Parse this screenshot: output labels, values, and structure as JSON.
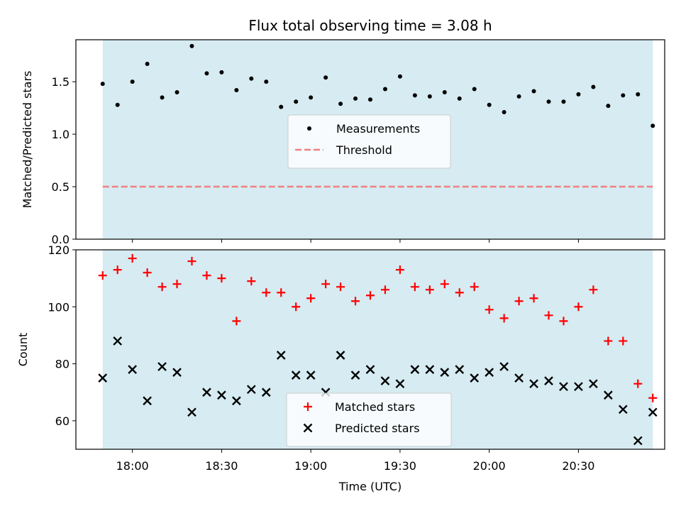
{
  "title": "Flux total observing time = 3.08 h",
  "colors": {
    "background": "#ffffff",
    "span_fill": "#add8e6",
    "measurements": "#000000",
    "threshold": "#f08080",
    "matched": "#ff0000",
    "predicted": "#000000",
    "legend_bg": "#ffffff",
    "legend_border": "#cccccc"
  },
  "chart_data": [
    {
      "type": "scatter",
      "ylabel": "Matched/Predicted stars",
      "xlabel": "",
      "ylim": [
        0.0,
        1.9
      ],
      "xlim": [
        "17:41",
        "20:59"
      ],
      "yticks": [
        0.0,
        0.5,
        1.0,
        1.5
      ],
      "ytick_labels": [
        "0.0",
        "0.5",
        "1.0",
        "1.5"
      ],
      "shaded_span": [
        "17:50",
        "20:55"
      ],
      "legend_position": "center-right",
      "series": [
        {
          "name": "Measurements",
          "marker": "dot",
          "x": [
            "17:50",
            "17:55",
            "18:00",
            "18:05",
            "18:10",
            "18:15",
            "18:20",
            "18:25",
            "18:30",
            "18:35",
            "18:40",
            "18:45",
            "18:50",
            "18:55",
            "19:00",
            "19:05",
            "19:10",
            "19:15",
            "19:20",
            "19:25",
            "19:30",
            "19:35",
            "19:40",
            "19:45",
            "19:50",
            "19:55",
            "20:00",
            "20:05",
            "20:10",
            "20:15",
            "20:20",
            "20:25",
            "20:30",
            "20:35",
            "20:40",
            "20:45",
            "20:50",
            "20:55"
          ],
          "y": [
            1.48,
            1.28,
            1.5,
            1.67,
            1.35,
            1.4,
            1.84,
            1.58,
            1.59,
            1.42,
            1.53,
            1.5,
            1.26,
            1.31,
            1.35,
            1.54,
            1.29,
            1.34,
            1.33,
            1.43,
            1.55,
            1.37,
            1.36,
            1.4,
            1.34,
            1.43,
            1.28,
            1.21,
            1.36,
            1.41,
            1.31,
            1.31,
            1.38,
            1.45,
            1.27,
            1.37,
            1.38,
            1.08
          ]
        },
        {
          "name": "Threshold",
          "style": "dashed-line",
          "x": [
            "17:50",
            "20:55"
          ],
          "y": [
            0.5,
            0.5
          ]
        }
      ]
    },
    {
      "type": "scatter",
      "ylabel": "Count",
      "xlabel": "Time (UTC)",
      "ylim": [
        50,
        120
      ],
      "xlim": [
        "17:41",
        "20:59"
      ],
      "yticks": [
        60,
        80,
        100,
        120
      ],
      "ytick_labels": [
        "60",
        "80",
        "100",
        "120"
      ],
      "xticks": [
        "18:00",
        "18:30",
        "19:00",
        "19:30",
        "20:00",
        "20:30"
      ],
      "xtick_labels": [
        "18:00",
        "18:30",
        "19:00",
        "19:30",
        "20:00",
        "20:30"
      ],
      "shaded_span": [
        "17:50",
        "20:55"
      ],
      "legend_position": "lower-center",
      "series": [
        {
          "name": "Matched stars",
          "marker": "plus",
          "x": [
            "17:50",
            "17:55",
            "18:00",
            "18:05",
            "18:10",
            "18:15",
            "18:20",
            "18:25",
            "18:30",
            "18:35",
            "18:40",
            "18:45",
            "18:50",
            "18:55",
            "19:00",
            "19:05",
            "19:10",
            "19:15",
            "19:20",
            "19:25",
            "19:30",
            "19:35",
            "19:40",
            "19:45",
            "19:50",
            "19:55",
            "20:00",
            "20:05",
            "20:10",
            "20:15",
            "20:20",
            "20:25",
            "20:30",
            "20:35",
            "20:40",
            "20:45",
            "20:50",
            "20:55"
          ],
          "y": [
            111,
            113,
            117,
            112,
            107,
            108,
            116,
            111,
            110,
            95,
            109,
            105,
            105,
            100,
            103,
            108,
            107,
            102,
            104,
            106,
            113,
            107,
            106,
            108,
            105,
            107,
            99,
            96,
            102,
            103,
            97,
            95,
            100,
            106,
            88,
            88,
            73,
            68
          ]
        },
        {
          "name": "Predicted stars",
          "marker": "x",
          "x": [
            "17:50",
            "17:55",
            "18:00",
            "18:05",
            "18:10",
            "18:15",
            "18:20",
            "18:25",
            "18:30",
            "18:35",
            "18:40",
            "18:45",
            "18:50",
            "18:55",
            "19:00",
            "19:05",
            "19:10",
            "19:15",
            "19:20",
            "19:25",
            "19:30",
            "19:35",
            "19:40",
            "19:45",
            "19:50",
            "19:55",
            "20:00",
            "20:05",
            "20:10",
            "20:15",
            "20:20",
            "20:25",
            "20:30",
            "20:35",
            "20:40",
            "20:45",
            "20:50",
            "20:55"
          ],
          "y": [
            75,
            88,
            78,
            67,
            79,
            77,
            63,
            70,
            69,
            67,
            71,
            70,
            83,
            76,
            76,
            70,
            83,
            76,
            78,
            74,
            73,
            78,
            78,
            77,
            78,
            75,
            77,
            79,
            75,
            73,
            74,
            72,
            72,
            73,
            69,
            64,
            53,
            63
          ]
        }
      ]
    }
  ]
}
